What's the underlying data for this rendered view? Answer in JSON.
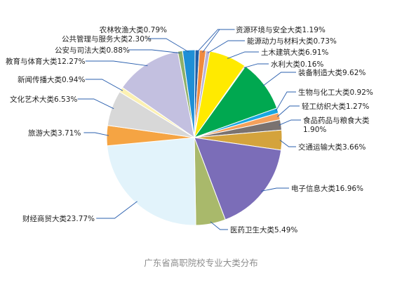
{
  "caption": "广东省高职院校专业大类分布",
  "chart_data": {
    "type": "pie",
    "title": "广东省高职院校专业大类分布",
    "labels_style": "outside-with-leader-lines",
    "slices": [
      {
        "name": "农林牧渔大类",
        "value": 0.79,
        "label": "农林牧渔大类0.79%",
        "color": "#1f5fa8"
      },
      {
        "name": "资源环境与安全大类",
        "value": 1.19,
        "label": "资源环境与安全大类1.19%",
        "color": "#f08a3e"
      },
      {
        "name": "能源动力与材料大类",
        "value": 0.73,
        "label": "能源动力与材料大类0.73%",
        "color": "#b9b3d6"
      },
      {
        "name": "土木建筑大类",
        "value": 6.91,
        "label": "土木建筑大类6.91%",
        "color": "#ffea00"
      },
      {
        "name": "水利大类",
        "value": 0.16,
        "label": "水利大类0.16%",
        "color": "#e0403a"
      },
      {
        "name": "装备制造大类",
        "value": 9.62,
        "label": "装备制造大类9.62%",
        "color": "#00a850"
      },
      {
        "name": "生物与化工大类",
        "value": 0.92,
        "label": "生物与化工大类0.92%",
        "color": "#18a7e0"
      },
      {
        "name": "轻工纺织大类",
        "value": 1.27,
        "label": "轻工纺织大类1.27%",
        "color": "#f4a15c"
      },
      {
        "name": "食品药品与粮食大类",
        "value": 1.9,
        "label": "食品药品与粮食大类1.90%",
        "color": "#7a7270"
      },
      {
        "name": "交通运输大类",
        "value": 3.66,
        "label": "交通运输大类3.66%",
        "color": "#d4a33c"
      },
      {
        "name": "电子信息大类",
        "value": 16.96,
        "label": "电子信息大类16.96%",
        "color": "#7b6db8"
      },
      {
        "name": "医药卫生大类",
        "value": 5.49,
        "label": "医药卫生大类5.49%",
        "color": "#a9b96b"
      },
      {
        "name": "财经商贸大类",
        "value": 23.77,
        "label": "财经商贸大类23.77%",
        "color": "#e2f3fb"
      },
      {
        "name": "旅游大类",
        "value": 3.71,
        "label": "旅游大类3.71%",
        "color": "#f5a443"
      },
      {
        "name": "文化艺术大类",
        "value": 6.53,
        "label": "文化艺术大类6.53%",
        "color": "#d8d8d8"
      },
      {
        "name": "新闻传播大类",
        "value": 0.94,
        "label": "新闻传播大类0.94%",
        "color": "#fcf1b2"
      },
      {
        "name": "教育与体育大类",
        "value": 12.27,
        "label": "教育与体育大类12.27%",
        "color": "#c3c0e0"
      },
      {
        "name": "公安与司法大类",
        "value": 0.88,
        "label": "公安与司法大类0.88%",
        "color": "#8fb06a"
      },
      {
        "name": "公共管理与服务大类",
        "value": 2.3,
        "label": "公共管理与服务大类2.30%",
        "color": "#1e8fd6"
      }
    ]
  }
}
